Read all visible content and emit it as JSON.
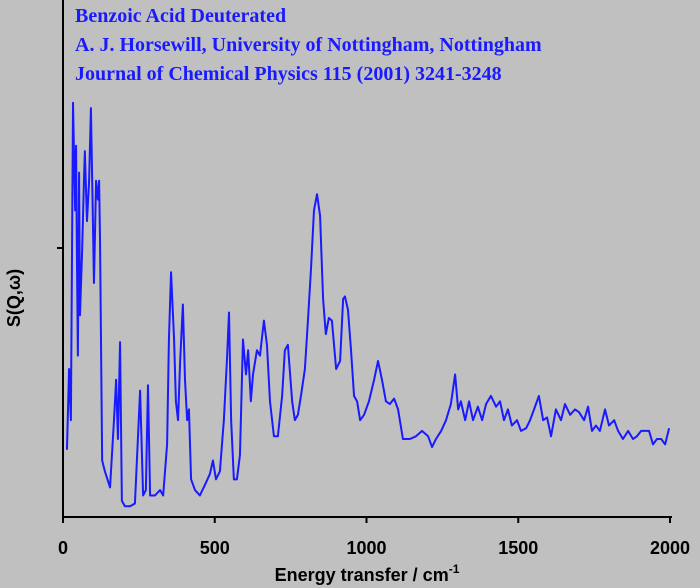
{
  "chart_data": {
    "type": "line",
    "title": [
      "Benzoic Acid Deuterated",
      "A. J. Horsewill, University of Nottingham, Nottingham",
      "Journal of Chemical Physics 115 (2001) 3241-3248"
    ],
    "xlabel": "Energy transfer / cm",
    "xlabel_superscript": "-1",
    "ylabel": "S(Q,ω)",
    "xlim": [
      0,
      2000
    ],
    "xticks": [
      0,
      500,
      1000,
      1500,
      2000
    ],
    "ylim": [
      0,
      2
    ],
    "yticks": [
      1
    ],
    "series": [
      {
        "color": "#1a1aff",
        "x": [
          13,
          20,
          26,
          33,
          40,
          43,
          46,
          49,
          53,
          56,
          63,
          69,
          72,
          79,
          86,
          92,
          99,
          102,
          105,
          109,
          115,
          119,
          122,
          129,
          138,
          155,
          168,
          175,
          181,
          188,
          194,
          204,
          221,
          237,
          254,
          264,
          273,
          280,
          287,
          303,
          320,
          330,
          343,
          349,
          356,
          366,
          372,
          379,
          386,
          395,
          402,
          409,
          415,
          422,
          435,
          451,
          468,
          484,
          494,
          504,
          517,
          530,
          540,
          547,
          554,
          563,
          573,
          583,
          593,
          603,
          610,
          619,
          626,
          639,
          649,
          662,
          672,
          682,
          695,
          708,
          722,
          731,
          741,
          755,
          764,
          774,
          784,
          797,
          807,
          817,
          827,
          837,
          847,
          857,
          866,
          876,
          886,
          900,
          913,
          923,
          929,
          939,
          949,
          959,
          969,
          979,
          992,
          1008,
          1025,
          1038,
          1051,
          1064,
          1077,
          1091,
          1104,
          1120,
          1143,
          1163,
          1183,
          1203,
          1216,
          1229,
          1246,
          1262,
          1278,
          1292,
          1302,
          1311,
          1325,
          1338,
          1351,
          1367,
          1381,
          1394,
          1410,
          1427,
          1440,
          1453,
          1466,
          1479,
          1496,
          1509,
          1526,
          1539,
          1552,
          1568,
          1582,
          1595,
          1608,
          1624,
          1641,
          1654,
          1671,
          1687,
          1700,
          1717,
          1730,
          1743,
          1756,
          1769,
          1786,
          1799,
          1816,
          1829,
          1845,
          1862,
          1878,
          1891,
          1905,
          1918,
          1931,
          1944,
          1957,
          1971,
          1984,
          1997
        ],
        "values": [
          0.25,
          0.55,
          0.36,
          1.54,
          1.14,
          1.38,
          0.96,
          0.6,
          1.28,
          0.75,
          0.99,
          1.25,
          1.36,
          1.1,
          1.25,
          1.52,
          1.07,
          0.87,
          1.03,
          1.25,
          1.18,
          1.25,
          1.03,
          0.21,
          0.17,
          0.11,
          0.36,
          0.51,
          0.29,
          0.65,
          0.06,
          0.04,
          0.04,
          0.05,
          0.47,
          0.08,
          0.1,
          0.49,
          0.08,
          0.08,
          0.1,
          0.08,
          0.27,
          0.66,
          0.91,
          0.66,
          0.43,
          0.36,
          0.58,
          0.79,
          0.51,
          0.36,
          0.4,
          0.14,
          0.1,
          0.08,
          0.12,
          0.16,
          0.21,
          0.14,
          0.17,
          0.36,
          0.58,
          0.76,
          0.36,
          0.14,
          0.14,
          0.23,
          0.66,
          0.53,
          0.62,
          0.43,
          0.53,
          0.62,
          0.6,
          0.73,
          0.64,
          0.43,
          0.3,
          0.3,
          0.45,
          0.62,
          0.64,
          0.43,
          0.36,
          0.38,
          0.45,
          0.55,
          0.73,
          0.92,
          1.14,
          1.2,
          1.12,
          0.81,
          0.68,
          0.74,
          0.73,
          0.55,
          0.58,
          0.81,
          0.82,
          0.77,
          0.62,
          0.45,
          0.43,
          0.36,
          0.38,
          0.43,
          0.51,
          0.58,
          0.51,
          0.43,
          0.42,
          0.44,
          0.4,
          0.29,
          0.29,
          0.3,
          0.32,
          0.3,
          0.26,
          0.29,
          0.32,
          0.36,
          0.42,
          0.53,
          0.4,
          0.43,
          0.36,
          0.43,
          0.36,
          0.41,
          0.36,
          0.42,
          0.45,
          0.41,
          0.43,
          0.36,
          0.4,
          0.34,
          0.36,
          0.32,
          0.33,
          0.36,
          0.4,
          0.45,
          0.36,
          0.37,
          0.3,
          0.4,
          0.36,
          0.42,
          0.38,
          0.4,
          0.39,
          0.36,
          0.41,
          0.32,
          0.34,
          0.32,
          0.4,
          0.34,
          0.36,
          0.32,
          0.29,
          0.32,
          0.29,
          0.3,
          0.32,
          0.32,
          0.32,
          0.27,
          0.29,
          0.29,
          0.27,
          0.33
        ]
      }
    ]
  }
}
